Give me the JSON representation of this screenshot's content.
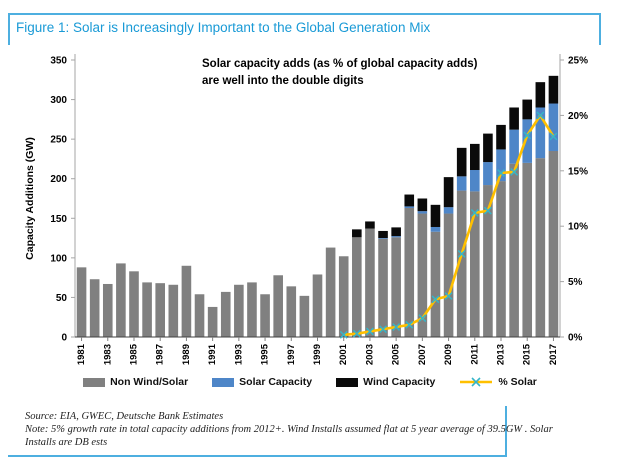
{
  "header": {
    "title": "Figure 1: Solar is Increasingly Important to the Global Generation Mix"
  },
  "chart": {
    "annotation": {
      "line1": "Solar capacity adds (as % of global  capacity adds)",
      "line2": "are well into the double digits"
    }
  },
  "chart_data": {
    "type": "bar",
    "subtype": "stacked-bar-with-line",
    "title": "Figure 1: Solar is Increasingly Important to the Global Generation Mix",
    "ylabel": "Capacity Additions (GW)",
    "y_left": {
      "min": 0,
      "max": 350,
      "step": 50
    },
    "y_right": {
      "min": 0,
      "max": 25,
      "step": 5,
      "format": "percent"
    },
    "grid": false,
    "legend_position": "bottom",
    "categories": [
      "1981",
      "1982",
      "1983",
      "1984",
      "1985",
      "1986",
      "1987",
      "1988",
      "1989",
      "1990",
      "1991",
      "1992",
      "1993",
      "1994",
      "1995",
      "1996",
      "1997",
      "1998",
      "1999",
      "2000",
      "2001",
      "2002",
      "2003",
      "2004",
      "2005",
      "2006",
      "2007",
      "2008",
      "2009",
      "2010",
      "2011",
      "2012",
      "2013",
      "2014",
      "2015",
      "2016",
      "2017"
    ],
    "x_tick_labels": [
      "1981",
      "1983",
      "1985",
      "1987",
      "1989",
      "1991",
      "1993",
      "1995",
      "1997",
      "1999",
      "2001",
      "2003",
      "2005",
      "2007",
      "2009",
      "2011",
      "2013",
      "2015",
      "2017"
    ],
    "series": [
      {
        "name": "Non Wind/Solar",
        "kind": "bar",
        "color": "#808080",
        "values": [
          88,
          73,
          67,
          93,
          83,
          69,
          68,
          66,
          90,
          54,
          38,
          57,
          66,
          69,
          54,
          78,
          64,
          52,
          79,
          113,
          102,
          126,
          137,
          124,
          126,
          163,
          156,
          133,
          156,
          185,
          184,
          192,
          197,
          219,
          220,
          226,
          235
        ]
      },
      {
        "name": "Solar Capacity",
        "kind": "bar",
        "color": "#4E86C8",
        "values": [
          0,
          0,
          0,
          0,
          0,
          0,
          0,
          0,
          0,
          0,
          0,
          0,
          0,
          0,
          0,
          0,
          0,
          0,
          0,
          0,
          0,
          0,
          0,
          1,
          1.5,
          2,
          3,
          6,
          8,
          18,
          27,
          29,
          40,
          43,
          55,
          64,
          60
        ]
      },
      {
        "name": "Wind Capacity",
        "kind": "bar",
        "color": "#0A0A0A",
        "values": [
          0,
          0,
          0,
          0,
          0,
          0,
          0,
          0,
          0,
          0,
          0,
          0,
          0,
          0,
          0,
          0,
          0,
          0,
          0,
          0,
          0,
          10,
          9,
          9,
          11,
          15,
          16,
          28,
          38,
          36,
          33,
          36,
          31,
          28,
          25,
          32,
          35
        ]
      },
      {
        "name": "% Solar",
        "kind": "line",
        "axis": "right",
        "color": "#FFC000",
        "marker": "x",
        "marker_color": "#35B5C9",
        "values": [
          null,
          null,
          null,
          null,
          null,
          null,
          null,
          null,
          null,
          null,
          null,
          null,
          null,
          null,
          null,
          null,
          null,
          null,
          null,
          null,
          0.2,
          0.3,
          0.5,
          0.7,
          0.9,
          1.1,
          1.7,
          3.4,
          3.7,
          7.5,
          11.2,
          11.4,
          14.8,
          14.9,
          18.2,
          20,
          18.1
        ]
      }
    ]
  },
  "colors": {
    "accent_blue": "#199AD6",
    "rule_blue": "#4DAFE0",
    "axis_gray": "#A6A6A6",
    "axis_bottom": "#404040"
  },
  "footer": {
    "source": "Source: EIA, GWEC, Deutsche Bank Estimates",
    "note": "Note: 5% growth rate in total capacity additions from 2012+.  Wind Installs assumed flat at 5 year average of 39.5GW .  Solar Installs are DB ests"
  }
}
